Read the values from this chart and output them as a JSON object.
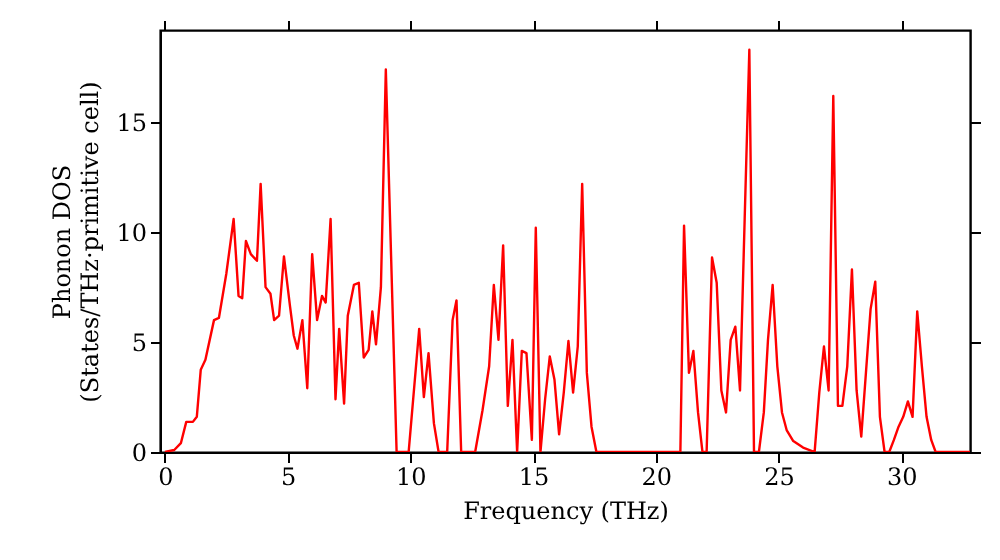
{
  "chart_data": {
    "type": "line",
    "xlabel": "Frequency (THz)",
    "ylabel": "Phonon DOS\n(States/THz·primitive cell)",
    "xlim": [
      -0.2,
      32.8
    ],
    "ylim": [
      0,
      19.2
    ],
    "xticks": [
      0,
      5,
      10,
      15,
      20,
      25,
      30
    ],
    "yticks": [
      0,
      5,
      10,
      15
    ],
    "grid": false,
    "line_style": "solid",
    "marker": "none",
    "series": [
      {
        "color": "#ff0000",
        "x": [
          0,
          0.38,
          0.65,
          0.87,
          1.14,
          1.3,
          1.46,
          1.65,
          2.0,
          2.2,
          2.5,
          2.8,
          3.0,
          3.15,
          3.3,
          3.5,
          3.75,
          3.9,
          4.1,
          4.3,
          4.45,
          4.65,
          4.85,
          5.1,
          5.25,
          5.4,
          5.6,
          5.8,
          6.0,
          6.2,
          6.4,
          6.55,
          6.75,
          6.95,
          7.1,
          7.3,
          7.45,
          7.7,
          7.9,
          8.1,
          8.3,
          8.45,
          8.6,
          8.8,
          9.0,
          9.44,
          9.93,
          10.36,
          10.55,
          10.74,
          10.96,
          11.15,
          11.5,
          11.72,
          11.88,
          12.07,
          12.64,
          12.94,
          13.21,
          13.4,
          13.59,
          13.78,
          13.97,
          14.16,
          14.35,
          14.54,
          14.73,
          14.95,
          15.11,
          15.3,
          15.49,
          15.68,
          15.87,
          16.06,
          16.25,
          16.44,
          16.63,
          16.82,
          17.0,
          17.19,
          17.38,
          17.58,
          21.0,
          21.15,
          21.35,
          21.53,
          21.72,
          21.9,
          22.07,
          22.29,
          22.48,
          22.67,
          22.86,
          23.05,
          23.24,
          23.43,
          23.62,
          23.81,
          24.0,
          24.2,
          24.4,
          24.57,
          24.76,
          24.95,
          25.14,
          25.33,
          25.6,
          26.0,
          26.47,
          26.66,
          26.85,
          27.04,
          27.23,
          27.42,
          27.6,
          27.8,
          27.99,
          28.18,
          28.37,
          28.56,
          28.75,
          28.94,
          29.13,
          29.32,
          29.51,
          29.7,
          29.89,
          30.08,
          30.27,
          30.46,
          30.65,
          30.84,
          31.03,
          31.22,
          31.4,
          32.8
        ],
        "values": [
          0,
          0.09,
          0.4,
          1.37,
          1.37,
          1.6,
          3.74,
          4.2,
          6.0,
          6.1,
          8.1,
          10.6,
          7.1,
          7.0,
          9.6,
          9.0,
          8.7,
          12.2,
          7.5,
          7.2,
          6.0,
          6.2,
          8.9,
          6.6,
          5.3,
          4.7,
          6.0,
          2.9,
          9.0,
          6.0,
          7.1,
          6.8,
          10.6,
          2.4,
          5.6,
          2.2,
          6.2,
          7.6,
          7.7,
          4.3,
          4.65,
          6.4,
          4.9,
          7.5,
          17.4,
          0,
          0,
          5.6,
          2.5,
          4.5,
          1.3,
          0,
          0,
          6.0,
          6.9,
          0,
          0,
          1.9,
          3.9,
          7.6,
          5.1,
          9.4,
          2.1,
          5.1,
          0,
          4.6,
          4.5,
          0.55,
          10.2,
          0,
          2.4,
          4.35,
          3.3,
          0.8,
          2.7,
          5.05,
          2.7,
          4.8,
          12.2,
          3.6,
          1.15,
          0,
          0,
          10.3,
          3.6,
          4.6,
          1.8,
          0,
          0,
          8.85,
          7.7,
          2.8,
          1.8,
          5.1,
          5.7,
          2.8,
          10.6,
          18.3,
          0,
          0,
          1.8,
          5.1,
          7.6,
          3.9,
          1.8,
          1.0,
          0.5,
          0.2,
          0,
          2.7,
          4.8,
          2.8,
          16.2,
          2.1,
          2.1,
          3.9,
          8.3,
          2.8,
          0.7,
          3.6,
          6.5,
          7.75,
          1.6,
          0,
          0,
          0.55,
          1.15,
          1.6,
          2.3,
          1.6,
          6.4,
          3.9,
          1.6,
          0.55,
          0,
          0
        ]
      }
    ]
  }
}
